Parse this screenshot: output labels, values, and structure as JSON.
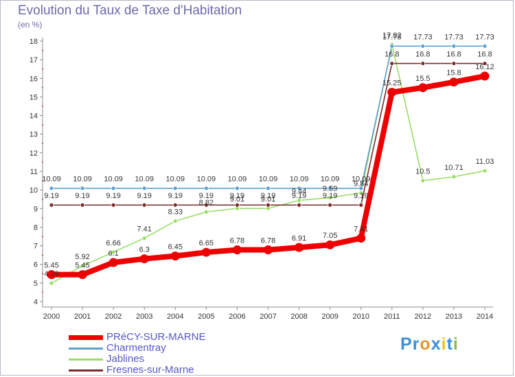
{
  "chart_data": {
    "type": "line",
    "title": "Evolution du Taux de Taxe d'Habitation",
    "subtitle": "(en %)",
    "x": [
      "2000",
      "2001",
      "2002",
      "2003",
      "2004",
      "2005",
      "2006",
      "2007",
      "2008",
      "2009",
      "2010",
      "2011",
      "2012",
      "2013",
      "2014"
    ],
    "ylim": [
      4,
      18
    ],
    "yticks": [
      4,
      5,
      6,
      7,
      8,
      9,
      10,
      11,
      12,
      13,
      14,
      15,
      16,
      17,
      18
    ],
    "grid": false,
    "legend_position": "bottom-left",
    "series": [
      {
        "name": "PRéCY-SUR-MARNE",
        "color": "#ee0000",
        "values": [
          5.45,
          5.45,
          6.1,
          6.3,
          6.45,
          6.65,
          6.78,
          6.78,
          6.91,
          7.05,
          7.41,
          15.25,
          15.5,
          15.8,
          16.12
        ],
        "labels": [
          "5.45",
          "5.45",
          "6.1",
          "6.3",
          "6.45",
          "6.65",
          "6.78",
          "6.78",
          "6.91",
          "7.05",
          "7.41",
          "15.25",
          "15.5",
          "15.8",
          "16.12"
        ]
      },
      {
        "name": "Charmentray",
        "color": "#5c9fcf",
        "values": [
          10.09,
          10.09,
          10.09,
          10.09,
          10.09,
          10.09,
          10.09,
          10.09,
          10.09,
          10.09,
          10.09,
          17.73,
          17.73,
          17.73,
          17.73
        ],
        "labels": [
          "10.09",
          "10.09",
          "10.09",
          "10.09",
          "10.09",
          "10.09",
          "10.09",
          "10.09",
          "10.09",
          "10.09",
          "10.09",
          "17.73",
          "17.73",
          "17.73",
          "17.73"
        ]
      },
      {
        "name": "Jablines",
        "color": "#99dd66",
        "values": [
          4.99,
          5.92,
          6.66,
          7.41,
          8.33,
          8.82,
          9.01,
          9.01,
          9.44,
          9.59,
          9.84,
          17.82,
          10.5,
          10.71,
          11.03
        ],
        "labels": [
          "4.99",
          "5.92",
          "6.66",
          "7.41",
          "8.33",
          "8.82",
          "9.01",
          "9.01",
          "9.44",
          "9.59",
          "9.84",
          "17.82",
          "10.5",
          "10.71",
          "11.03"
        ]
      },
      {
        "name": "Fresnes-sur-Marne",
        "color": "#7a2a2a",
        "values": [
          9.19,
          9.19,
          9.19,
          9.19,
          9.19,
          9.19,
          9.19,
          9.19,
          9.19,
          9.19,
          9.19,
          16.8,
          16.8,
          16.8,
          16.8
        ],
        "labels": [
          "9.19",
          "9.19",
          "9.19",
          "9.19",
          "9.19",
          "9.19",
          "9.19",
          "9.19",
          "9.19",
          "9.19",
          "9.19",
          "16.8",
          "16.8",
          "16.8",
          "16.8"
        ]
      }
    ]
  },
  "logo": {
    "letters": [
      "P",
      "r",
      "o",
      "x",
      "i",
      "t",
      "i"
    ],
    "colors": [
      "#3a8fd8",
      "#3a8fd8",
      "#e8962a",
      "#3a8fd8",
      "#f0c020",
      "#3a8fd8",
      "#88c040"
    ]
  }
}
